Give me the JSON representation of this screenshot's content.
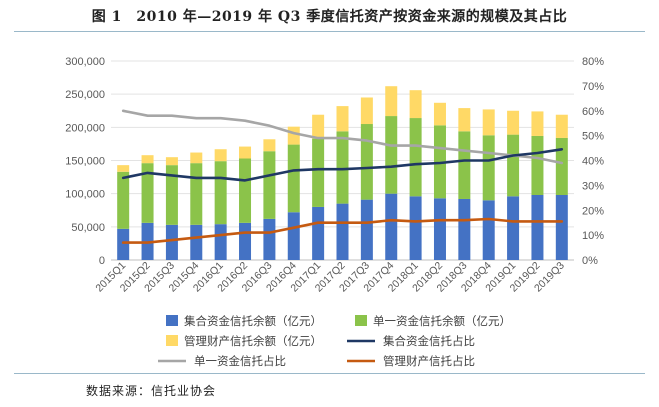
{
  "figure": {
    "title": "图 1　2010 年—2019 年 Q3 季度信托资产按资金来源的规模及其占比",
    "source": "数据来源：信托业协会"
  },
  "chart_data": {
    "type": "bar",
    "stacked": true,
    "categories": [
      "2015Q1",
      "2015Q2",
      "2015Q3",
      "2015Q4",
      "2016Q1",
      "2016Q2",
      "2016Q3",
      "2016Q4",
      "2017Q1",
      "2017Q2",
      "2017Q3",
      "2017Q4",
      "2018Q1",
      "2018Q2",
      "2018Q3",
      "2018Q4",
      "2019Q1",
      "2019Q2",
      "2019Q3"
    ],
    "left_axis": {
      "ylim": [
        0,
        300000
      ],
      "ticks": [
        "0",
        "50,000",
        "100,000",
        "150,000",
        "200,000",
        "250,000",
        "300,000"
      ]
    },
    "right_axis": {
      "ylim": [
        0,
        0.8
      ],
      "ticks": [
        "0%",
        "10%",
        "20%",
        "30%",
        "40%",
        "50%",
        "60%",
        "70%",
        "80%"
      ]
    },
    "bar_series": [
      {
        "name": "集合资金信托余额（亿元）",
        "color": "#4472c4",
        "values": [
          47000,
          56000,
          53000,
          53000,
          54000,
          56000,
          62000,
          72000,
          80000,
          85000,
          91000,
          100000,
          96000,
          93000,
          92000,
          90000,
          96000,
          98000,
          98000
        ]
      },
      {
        "name": "单一资金信托余额（亿元）",
        "color": "#8bc34a",
        "values": [
          86000,
          90000,
          90000,
          93000,
          95000,
          97000,
          102000,
          102000,
          103000,
          109000,
          114000,
          117000,
          118000,
          110000,
          102000,
          98000,
          93000,
          89000,
          86000
        ]
      },
      {
        "name": "管理财产信托余额（亿元）",
        "color": "#ffd966",
        "values": [
          10000,
          12000,
          12000,
          16000,
          18000,
          18000,
          18000,
          27000,
          36000,
          38000,
          40000,
          45000,
          42000,
          34000,
          35000,
          39000,
          36000,
          37000,
          35000
        ]
      }
    ],
    "line_series": [
      {
        "name": "单一资金信托占比",
        "color": "#a6a6a6",
        "values": [
          0.6,
          0.58,
          0.58,
          0.57,
          0.57,
          0.56,
          0.54,
          0.51,
          0.49,
          0.49,
          0.48,
          0.46,
          0.46,
          0.45,
          0.44,
          0.43,
          0.42,
          0.41,
          0.39
        ]
      },
      {
        "name": "集合资金信托占比",
        "color": "#1f3864",
        "values": [
          0.33,
          0.35,
          0.34,
          0.33,
          0.33,
          0.32,
          0.34,
          0.36,
          0.365,
          0.365,
          0.37,
          0.375,
          0.385,
          0.39,
          0.4,
          0.4,
          0.42,
          0.43,
          0.445
        ]
      },
      {
        "name": "管理财产信托占比",
        "color": "#c55a11",
        "values": [
          0.07,
          0.07,
          0.08,
          0.09,
          0.1,
          0.11,
          0.11,
          0.13,
          0.15,
          0.15,
          0.15,
          0.16,
          0.155,
          0.16,
          0.16,
          0.165,
          0.155,
          0.155,
          0.155
        ]
      }
    ],
    "legend": [
      {
        "label": "集合资金信托余额（亿元）",
        "kind": "bar",
        "color": "#4472c4"
      },
      {
        "label": "单一资金信托余额（亿元）",
        "kind": "bar",
        "color": "#8bc34a"
      },
      {
        "label": "管理财产信托余额（亿元）",
        "kind": "bar",
        "color": "#ffd966"
      },
      {
        "label": "集合资金信托占比",
        "kind": "line",
        "color": "#1f3864"
      },
      {
        "label": "单一资金信托占比",
        "kind": "line",
        "color": "#a6a6a6"
      },
      {
        "label": "管理财产信托占比",
        "kind": "line",
        "color": "#c55a11"
      }
    ],
    "legend_position": "bottom",
    "grid": true
  }
}
